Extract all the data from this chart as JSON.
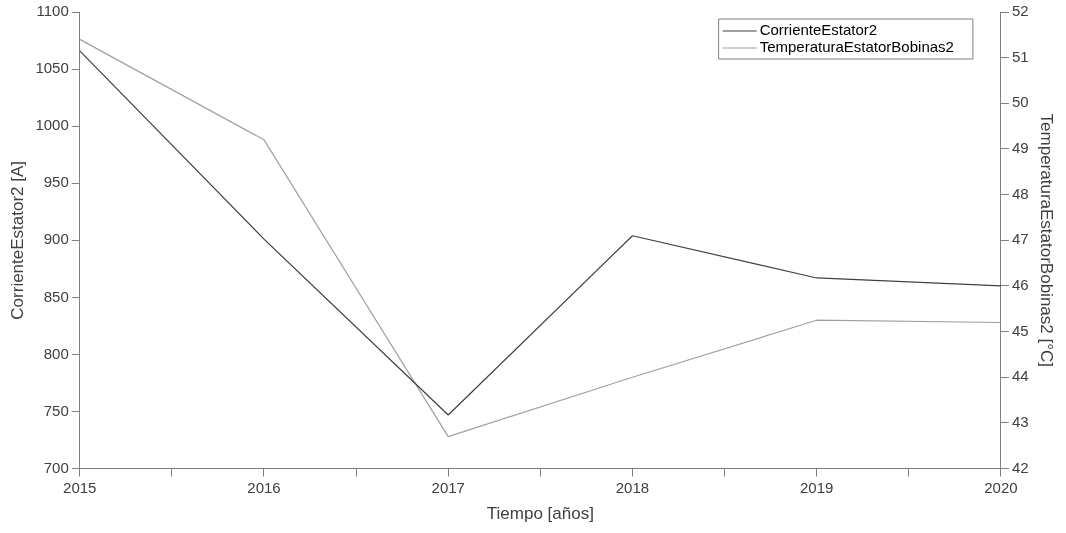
{
  "chart_data": {
    "type": "line",
    "xlabel": "Tiempo [años]",
    "ylabel": "CorrienteEstator2 [A]",
    "y2label": "TemperaturaEstatorBobinas2 [°C]",
    "x": [
      2015,
      2016,
      2017,
      2018,
      2019,
      2020
    ],
    "series": [
      {
        "name": "CorrienteEstator2",
        "color": "#404040",
        "values": [
          1066,
          901,
          747,
          904,
          867,
          860
        ]
      },
      {
        "name": "TemperaturaEstatorBobinas2",
        "color": "#a0a0a0",
        "axis": "y2",
        "values": [
          51.4,
          49.2,
          42.7,
          44.0,
          45.25,
          45.2
        ]
      }
    ],
    "xlim": [
      2015,
      2020
    ],
    "xticks": [
      2015,
      {
        "value": 2015.5,
        "label": null
      },
      2016,
      {
        "value": 2016.5,
        "label": null
      },
      2017,
      {
        "value": 2017.5,
        "label": null
      },
      2018,
      {
        "value": 2018.5,
        "label": null
      },
      2019,
      {
        "value": 2019.5,
        "label": null
      },
      2020
    ],
    "ylim": [
      700,
      1100
    ],
    "yticks": [
      700,
      750,
      800,
      850,
      900,
      950,
      1000,
      1050,
      1100
    ],
    "y2lim": [
      42,
      52
    ],
    "y2ticks": [
      42,
      43,
      44,
      45,
      46,
      47,
      48,
      49,
      50,
      51,
      52
    ],
    "grid": false,
    "legend": "top right",
    "marker": "none",
    "line_style": "solid"
  }
}
